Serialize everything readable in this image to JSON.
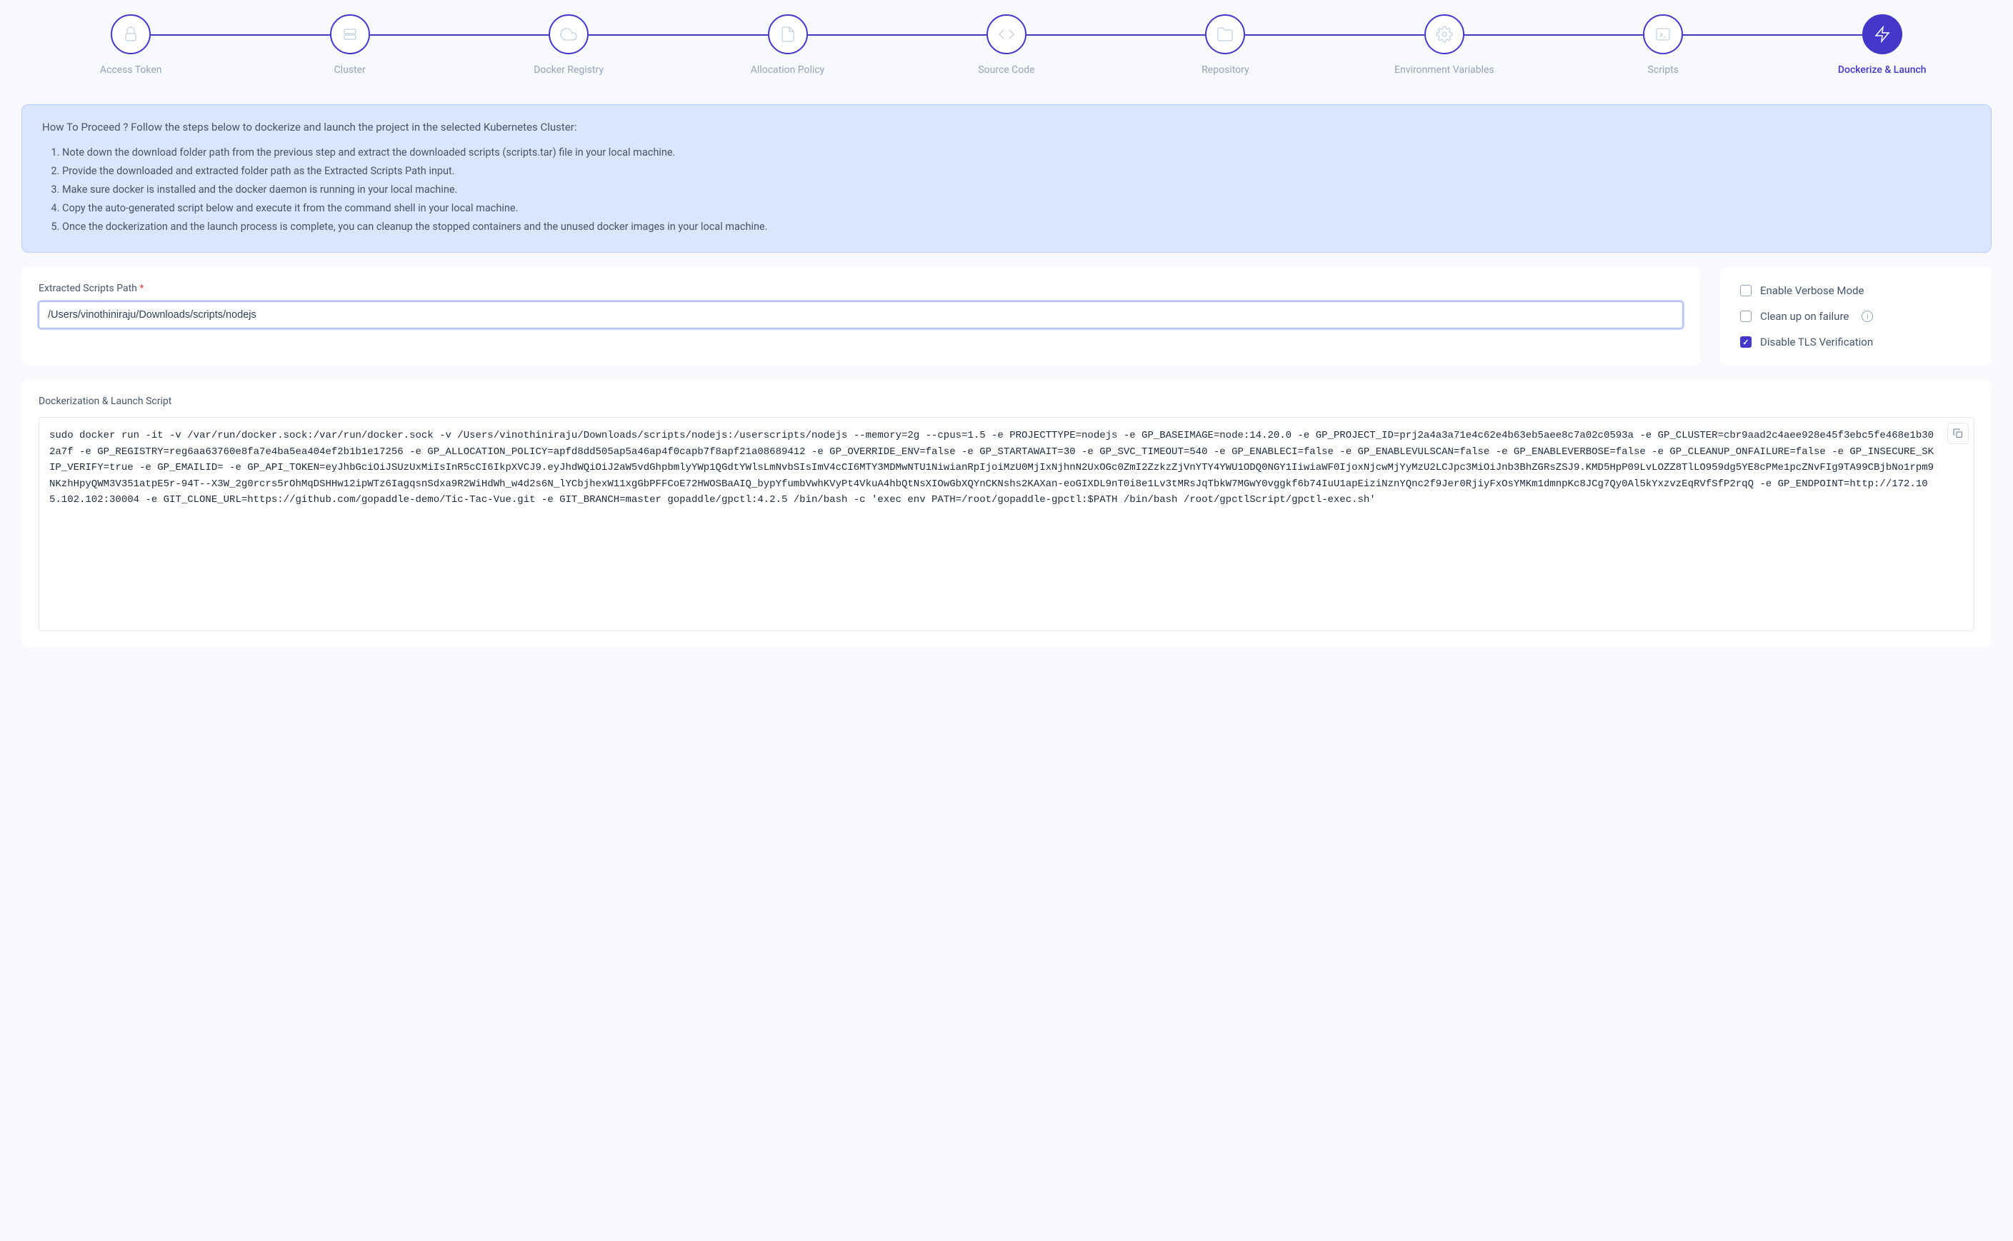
{
  "stepper": {
    "steps": [
      {
        "label": "Access Token",
        "icon": "lock"
      },
      {
        "label": "Cluster",
        "icon": "server"
      },
      {
        "label": "Docker Registry",
        "icon": "cloud"
      },
      {
        "label": "Allocation Policy",
        "icon": "document"
      },
      {
        "label": "Source Code",
        "icon": "code"
      },
      {
        "label": "Repository",
        "icon": "folder"
      },
      {
        "label": "Environment Variables",
        "icon": "gear"
      },
      {
        "label": "Scripts",
        "icon": "terminal"
      },
      {
        "label": "Dockerize & Launch",
        "icon": "bolt"
      }
    ],
    "active_index": 8
  },
  "info_panel": {
    "title": "How To Proceed ? Follow the steps below to dockerize and launch the project in the selected Kubernetes Cluster:",
    "items": [
      "Note down the download folder path from the previous step and extract the downloaded scripts (scripts.tar) file in your local machine.",
      "Provide the downloaded and extracted folder path as the Extracted Scripts Path input.",
      "Make sure docker is installed and the docker daemon is running in your local machine.",
      "Copy the auto-generated script below and execute it from the command shell in your local machine.",
      "Once the dockerization and the launch process is complete, you can cleanup the stopped containers and the unused docker images in your local machine."
    ]
  },
  "form": {
    "path_label": "Extracted Scripts Path",
    "path_value": "/Users/vinothiniraju/Downloads/scripts/nodejs",
    "options": [
      {
        "label": "Enable Verbose Mode",
        "checked": false,
        "info": false
      },
      {
        "label": "Clean up on failure",
        "checked": false,
        "info": true
      },
      {
        "label": "Disable TLS Verification",
        "checked": true,
        "info": false
      }
    ]
  },
  "script": {
    "title": "Dockerization & Launch Script",
    "content": "sudo docker run -it -v /var/run/docker.sock:/var/run/docker.sock -v /Users/vinothiniraju/Downloads/scripts/nodejs:/userscripts/nodejs --memory=2g --cpus=1.5 -e PROJECTTYPE=nodejs -e GP_BASEIMAGE=node:14.20.0 -e GP_PROJECT_ID=prj2a4a3a71e4c62e4b63eb5aee8c7a02c0593a -e GP_CLUSTER=cbr9aad2c4aee928e45f3ebc5fe468e1b302a7f -e GP_REGISTRY=reg6aa63760e8fa7e4ba5ea404ef2b1b1e17256 -e GP_ALLOCATION_POLICY=apfd8dd505ap5a46ap4f0capb7f8apf21a08689412 -e GP_OVERRIDE_ENV=false -e GP_STARTAWAIT=30 -e GP_SVC_TIMEOUT=540 -e GP_ENABLECI=false -e GP_ENABLEVULSCAN=false -e GP_ENABLEVERBOSE=false -e GP_CLEANUP_ONFAILURE=false -e GP_INSECURE_SKIP_VERIFY=true -e GP_EMAILID=                      -e GP_API_TOKEN=eyJhbGciOiJSUzUxMiIsInR5cCI6IkpXVCJ9.eyJhdWQiOiJ2aW5vdGhpbmlyYWp1QGdtYWlsLmNvbSIsImV4cCI6MTY3MDMwNTU1NiwianRpIjoiMzU0MjIxNjhnN2UxOGc0ZmI2ZzkzZjVnYTY4YWU1ODQ0NGY1IiwiaWF0IjoxNjcwMjYyMzU2LCJpc3MiOiJnb3BhZGRsZSJ9.KMD5HpP09LvLOZZ8TlLO959dg5YE8cPMe1pcZNvFIg9TA99CBjbNo1rpm9NKzhHpyQWM3V351atpE5r-94T--X3W_2g0rcrs5rOhMqDSHHw12ipWTz6IagqsnSdxa9R2WiHdWh_w4d2s6N_lYCbjhexW11xgGbPFFCoE72HWOSBaAIQ_bypYfumbVwhKVyPt4VkuA4hbQtNsXIOwGbXQYnCKNshs2KAXan-eoGIXDL9nT0i8e1Lv3tMRsJqTbkW7MGwY0vggkf6b74IuU1apEiziNznYQnc2f9Jer0RjiyFxOsYMKm1dmnpKc8JCg7Qy0Al5kYxzvzEqRVfSfP2rqQ -e GP_ENDPOINT=http://172.105.102.102:30004 -e GIT_CLONE_URL=https://github.com/gopaddle-demo/Tic-Tac-Vue.git -e GIT_BRANCH=master gopaddle/gpctl:4.2.5 /bin/bash -c 'exec env PATH=/root/gopaddle-gpctl:$PATH /bin/bash /root/gpctlScript/gpctl-exec.sh'"
  },
  "colors": {
    "primary": "#4338ca",
    "info_bg": "#dbe5ff",
    "info_border": "#b8cdff",
    "text_muted": "#94a3b8",
    "text_body": "#475569"
  }
}
